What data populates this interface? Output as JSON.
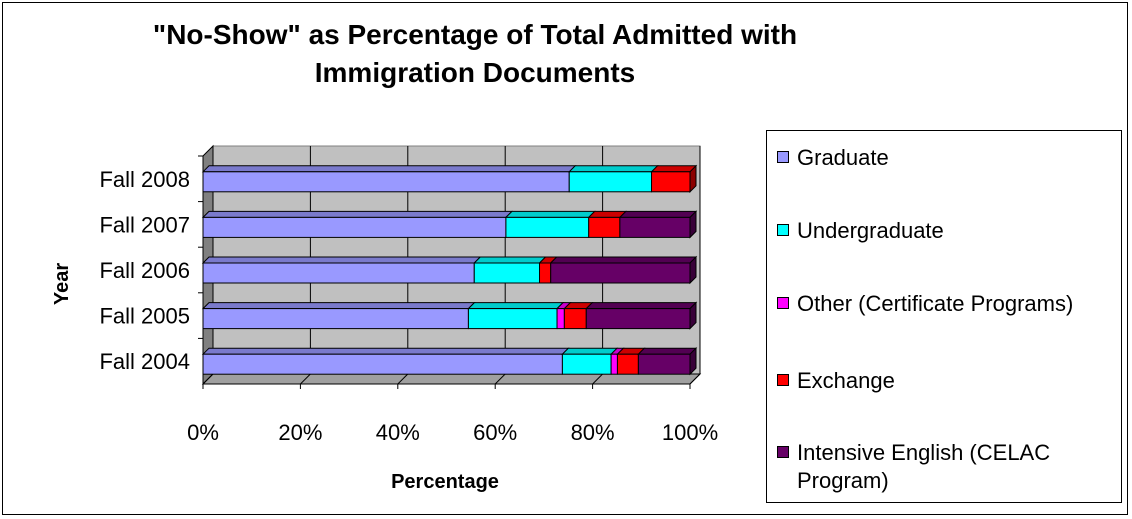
{
  "chart_data": {
    "type": "bar",
    "orientation": "horizontal",
    "stacked": "percent",
    "title": "\"No-Show\" as Percentage of Total Admitted with Immigration Documents",
    "title_lines": [
      "\"No-Show\" as Percentage of Total Admitted with",
      "Immigration Documents"
    ],
    "xlabel": "Percentage",
    "ylabel": "Year",
    "categories": [
      "Fall 2008",
      "Fall 2007",
      "Fall 2006",
      "Fall 2005",
      "Fall 2004"
    ],
    "x_ticks": [
      "0%",
      "20%",
      "40%",
      "60%",
      "80%",
      "100%"
    ],
    "xlim": [
      0,
      100
    ],
    "grid": true,
    "legend_position": "right",
    "series": [
      {
        "name": "Graduate",
        "color": "#9999FF",
        "values": [
          75.2,
          62.2,
          55.7,
          54.5,
          73.8
        ]
      },
      {
        "name": "Undergraduate",
        "color": "#00FFFF",
        "values": [
          16.9,
          17.0,
          13.4,
          18.2,
          10.0
        ]
      },
      {
        "name": "Other (Certificate Programs)",
        "color": "#FF00FF",
        "values": [
          0,
          0,
          0,
          1.5,
          1.3
        ]
      },
      {
        "name": "Exchange",
        "color": "#FF0000",
        "values": [
          7.9,
          6.4,
          2.3,
          4.5,
          4.3
        ]
      },
      {
        "name": "Intensive English (CELAC Program)",
        "color": "#660066",
        "values": [
          0,
          14.4,
          28.6,
          21.3,
          10.6
        ]
      }
    ]
  }
}
